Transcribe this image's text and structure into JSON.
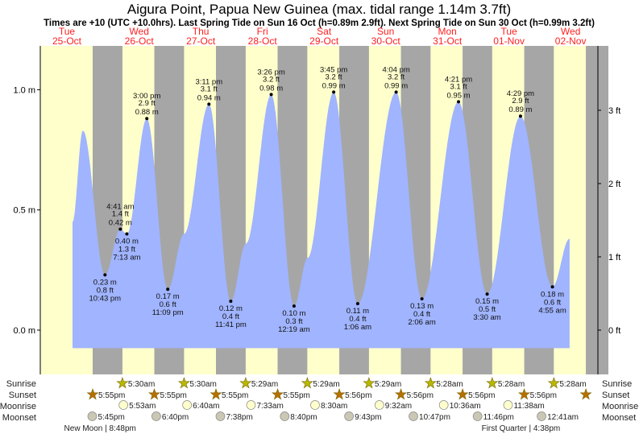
{
  "title": "Aigura Point, Papua New Guinea (max. tidal range 1.14m 3.7ft)",
  "subtitle": "Times are +10 (UTC +10.0hrs). Last Spring Tide on Sun 16 Oct (h=0.89m 2.9ft). Next Spring Tide on Sun 30 Oct (h=0.99m 3.2ft)",
  "days": [
    {
      "dow": "Tue",
      "date": "25-Oct"
    },
    {
      "dow": "Wed",
      "date": "26-Oct"
    },
    {
      "dow": "Thu",
      "date": "27-Oct"
    },
    {
      "dow": "Fri",
      "date": "28-Oct"
    },
    {
      "dow": "Sat",
      "date": "29-Oct"
    },
    {
      "dow": "Sun",
      "date": "30-Oct"
    },
    {
      "dow": "Mon",
      "date": "31-Oct"
    },
    {
      "dow": "Tue",
      "date": "01-Nov"
    },
    {
      "dow": "Wed",
      "date": "02-Nov"
    }
  ],
  "row_labels": {
    "sunrise": "Sunrise",
    "sunset": "Sunset",
    "moonrise": "Moonrise",
    "moonset": "Moonset"
  },
  "colors": {
    "day": "#ffffcc",
    "night": "#a6a6a6",
    "water": "#a0b4ff",
    "date": "#ff2020",
    "sunrise": "#b8b800",
    "sunset": "#b86e00",
    "moonrise": "#ffffcc",
    "moonset": "#c8c8b4"
  },
  "chart_data": {
    "type": "area",
    "title": "Aigura Point, Papua New Guinea (max. tidal range 1.14m 3.7ft)",
    "ylabel_left": "m",
    "ylabel_right": "ft",
    "ylim_m": [
      -0.17,
      1.18
    ],
    "left_ticks": [
      {
        "v": 0.0,
        "label": "0.0 m"
      },
      {
        "v": 0.5,
        "label": "0.5 m"
      },
      {
        "v": 1.0,
        "label": "1.0 m"
      }
    ],
    "right_ticks": [
      {
        "v": 0,
        "label": "0 ft"
      },
      {
        "v": 1,
        "label": "1 ft"
      },
      {
        "v": 2,
        "label": "2 ft"
      },
      {
        "v": 3,
        "label": "3 ft"
      }
    ],
    "curve_points": [
      {
        "day": 0,
        "time": "10:04",
        "m": 0.45
      },
      {
        "day": 0,
        "time": "14:06",
        "m": 0.83
      },
      {
        "day": 2,
        "time": "05:30",
        "m": 0.4
      },
      {
        "day": 3,
        "time": "05:36",
        "m": 0.36
      },
      {
        "day": 4,
        "time": "05:36",
        "m": 0.3
      },
      {
        "day": 8,
        "time": "11:36",
        "m": 0.38
      }
    ],
    "extremes": [
      {
        "type": "low",
        "day": 0,
        "time": "22:43",
        "label": "10:43 pm",
        "m": "0.23 m",
        "ft": "0.8 ft",
        "v": 0.23
      },
      {
        "type": "high",
        "day": 1,
        "time": "04:41",
        "label": "4:41 am",
        "m": "0.42 m",
        "ft": "1.4 ft",
        "v": 0.42
      },
      {
        "type": "low",
        "day": 1,
        "time": "07:13",
        "label": "7:13 am",
        "m": "0.40 m",
        "ft": "1.3 ft",
        "v": 0.4
      },
      {
        "type": "high",
        "day": 1,
        "time": "15:00",
        "label": "3:00 pm",
        "m": "0.88 m",
        "ft": "2.9 ft",
        "v": 0.88
      },
      {
        "type": "low",
        "day": 1,
        "time": "23:09",
        "label": "11:09 pm",
        "m": "0.17 m",
        "ft": "0.6 ft",
        "v": 0.17
      },
      {
        "type": "high",
        "day": 2,
        "time": "15:11",
        "label": "3:11 pm",
        "m": "0.94 m",
        "ft": "3.1 ft",
        "v": 0.94
      },
      {
        "type": "low",
        "day": 2,
        "time": "23:41",
        "label": "11:41 pm",
        "m": "0.12 m",
        "ft": "0.4 ft",
        "v": 0.12
      },
      {
        "type": "high",
        "day": 3,
        "time": "15:26",
        "label": "3:26 pm",
        "m": "0.98 m",
        "ft": "3.2 ft",
        "v": 0.98
      },
      {
        "type": "low",
        "day": 4,
        "time": "00:19",
        "label": "12:19 am",
        "m": "0.10 m",
        "ft": "0.3 ft",
        "v": 0.1
      },
      {
        "type": "high",
        "day": 4,
        "time": "15:45",
        "label": "3:45 pm",
        "m": "0.99 m",
        "ft": "3.2 ft",
        "v": 0.99
      },
      {
        "type": "low",
        "day": 5,
        "time": "01:06",
        "label": "1:06 am",
        "m": "0.11 m",
        "ft": "0.4 ft",
        "v": 0.11
      },
      {
        "type": "high",
        "day": 5,
        "time": "16:04",
        "label": "4:04 pm",
        "m": "0.99 m",
        "ft": "3.2 ft",
        "v": 0.99
      },
      {
        "type": "low",
        "day": 6,
        "time": "02:06",
        "label": "2:06 am",
        "m": "0.13 m",
        "ft": "0.4 ft",
        "v": 0.13
      },
      {
        "type": "high",
        "day": 6,
        "time": "16:21",
        "label": "4:21 pm",
        "m": "0.95 m",
        "ft": "3.1 ft",
        "v": 0.95
      },
      {
        "type": "low",
        "day": 7,
        "time": "03:30",
        "label": "3:30 am",
        "m": "0.15 m",
        "ft": "0.5 ft",
        "v": 0.15
      },
      {
        "type": "high",
        "day": 7,
        "time": "16:29",
        "label": "4:29 pm",
        "m": "0.89 m",
        "ft": "2.9 ft",
        "v": 0.89
      },
      {
        "type": "low",
        "day": 8,
        "time": "04:55",
        "label": "4:55 am",
        "m": "0.18 m",
        "ft": "0.6 ft",
        "v": 0.18
      }
    ],
    "sunrise": [
      {
        "day": 1,
        "time": "05:30",
        "label": "5:30am"
      },
      {
        "day": 2,
        "time": "05:30",
        "label": "5:30am"
      },
      {
        "day": 3,
        "time": "05:29",
        "label": "5:29am"
      },
      {
        "day": 4,
        "time": "05:29",
        "label": "5:29am"
      },
      {
        "day": 5,
        "time": "05:29",
        "label": "5:29am"
      },
      {
        "day": 6,
        "time": "05:28",
        "label": "5:28am"
      },
      {
        "day": 7,
        "time": "05:28",
        "label": "5:28am"
      },
      {
        "day": 8,
        "time": "05:28",
        "label": "5:28am"
      }
    ],
    "sunset": [
      {
        "day": 0,
        "time": "17:55",
        "label": "5:55pm"
      },
      {
        "day": 1,
        "time": "17:55",
        "label": "5:55pm"
      },
      {
        "day": 2,
        "time": "17:55",
        "label": "5:55pm"
      },
      {
        "day": 3,
        "time": "17:55",
        "label": "5:55pm"
      },
      {
        "day": 4,
        "time": "17:56",
        "label": "5:56pm"
      },
      {
        "day": 5,
        "time": "17:56",
        "label": "5:56pm"
      },
      {
        "day": 6,
        "time": "17:56",
        "label": "5:56pm"
      },
      {
        "day": 7,
        "time": "17:56",
        "label": "5:56pm"
      },
      {
        "day": 8,
        "time": "17:56",
        "label": ""
      }
    ],
    "moonrise": [
      {
        "day": 1,
        "time": "05:53",
        "label": "5:53am"
      },
      {
        "day": 2,
        "time": "06:40",
        "label": "6:40am"
      },
      {
        "day": 3,
        "time": "07:33",
        "label": "7:33am"
      },
      {
        "day": 4,
        "time": "08:30",
        "label": "8:30am"
      },
      {
        "day": 5,
        "time": "09:32",
        "label": "9:32am"
      },
      {
        "day": 6,
        "time": "10:36",
        "label": "10:36am"
      },
      {
        "day": 7,
        "time": "11:38",
        "label": "11:38am"
      }
    ],
    "moonset": [
      {
        "day": 0,
        "time": "17:45",
        "label": "5:45pm"
      },
      {
        "day": 1,
        "time": "18:40",
        "label": "6:40pm"
      },
      {
        "day": 2,
        "time": "19:38",
        "label": "7:38pm"
      },
      {
        "day": 3,
        "time": "20:40",
        "label": "8:40pm"
      },
      {
        "day": 4,
        "time": "21:43",
        "label": "9:43pm"
      },
      {
        "day": 5,
        "time": "22:47",
        "label": "10:47pm"
      },
      {
        "day": 6,
        "time": "23:46",
        "label": "11:46pm"
      },
      {
        "day": 8,
        "time": "00:41",
        "label": "12:41am"
      }
    ],
    "moon_phases": [
      {
        "day": 0,
        "time": "20:48",
        "label": "New Moon | 8:48pm"
      },
      {
        "day": 7,
        "time": "16:38",
        "label": "First Quarter | 4:38pm"
      }
    ]
  }
}
